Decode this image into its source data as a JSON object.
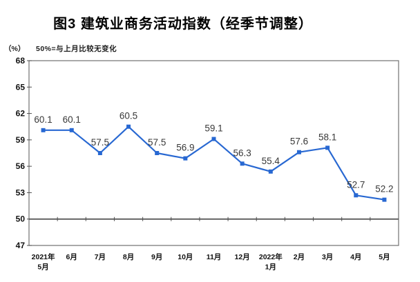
{
  "title": "图3 建筑业商务活动指数（经季节调整）",
  "unit_label": "（%）",
  "note": "50%=与上月比较无变化",
  "chart_data": {
    "type": "line",
    "series_name": "建筑业商务活动指数",
    "categories": [
      [
        "2021年",
        "5月"
      ],
      [
        "6月"
      ],
      [
        "7月"
      ],
      [
        "8月"
      ],
      [
        "9月"
      ],
      [
        "10月"
      ],
      [
        "11月"
      ],
      [
        "12月"
      ],
      [
        "2022年",
        "1月"
      ],
      [
        "2月"
      ],
      [
        "3月"
      ],
      [
        "4月"
      ],
      [
        "5月"
      ]
    ],
    "values": [
      60.1,
      60.1,
      57.5,
      60.5,
      57.5,
      56.9,
      59.1,
      56.3,
      55.4,
      57.6,
      58.1,
      52.7,
      52.2
    ],
    "value_labels": [
      "60.1",
      "60.1",
      "57.5",
      "60.5",
      "57.5",
      "56.9",
      "59.1",
      "56.3",
      "55.4",
      "57.6",
      "58.1",
      "52.7",
      "52.2"
    ],
    "yticks": [
      68,
      65,
      62,
      59,
      56,
      53,
      50,
      47
    ],
    "ylim": [
      47,
      68
    ],
    "reference_line": 50,
    "grid": false,
    "legend": "none",
    "marker": "square",
    "colors": {
      "line": "#2868d2",
      "marker": "#2868d2",
      "value_label": "#383838",
      "axis_text": "#111111",
      "frame": "#707070",
      "axis_line": "#4f4f4f"
    }
  }
}
